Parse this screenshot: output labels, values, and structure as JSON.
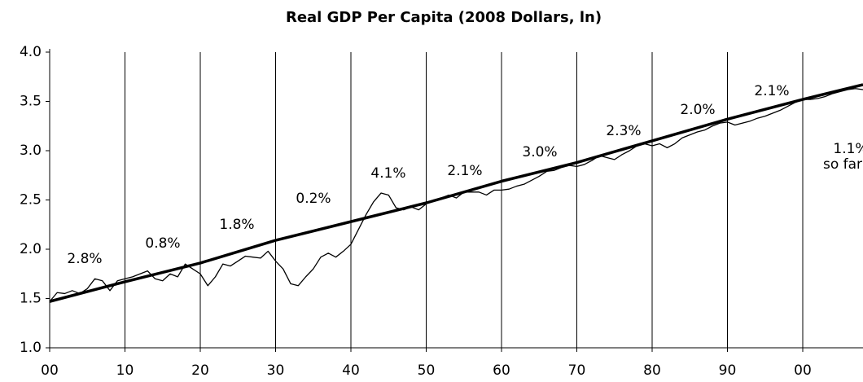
{
  "chart_data": {
    "type": "line",
    "title": "Real GDP Per Capita (2008 Dollars, ln)",
    "xlim": [
      1900,
      2008
    ],
    "xticks": [
      {
        "value": 1900,
        "label": "00"
      },
      {
        "value": 1910,
        "label": "10"
      },
      {
        "value": 1920,
        "label": "20"
      },
      {
        "value": 1930,
        "label": "30"
      },
      {
        "value": 1940,
        "label": "40"
      },
      {
        "value": 1950,
        "label": "50"
      },
      {
        "value": 1960,
        "label": "60"
      },
      {
        "value": 1970,
        "label": "70"
      },
      {
        "value": 1980,
        "label": "80"
      },
      {
        "value": 1990,
        "label": "90"
      },
      {
        "value": 2000,
        "label": "00"
      }
    ],
    "ylim": [
      1.0,
      4.0
    ],
    "yticks": [
      {
        "value": 1.0,
        "label": "1.0"
      },
      {
        "value": 1.5,
        "label": "1.5"
      },
      {
        "value": 2.0,
        "label": "2.0"
      },
      {
        "value": 2.5,
        "label": "2.5"
      },
      {
        "value": 3.0,
        "label": "3.0"
      },
      {
        "value": 3.5,
        "label": "3.5"
      },
      {
        "value": 4.0,
        "label": "4.0"
      }
    ],
    "grid": true,
    "x": [
      1900,
      1901,
      1902,
      1903,
      1904,
      1905,
      1906,
      1907,
      1908,
      1909,
      1910,
      1911,
      1912,
      1913,
      1914,
      1915,
      1916,
      1917,
      1918,
      1919,
      1920,
      1921,
      1922,
      1923,
      1924,
      1925,
      1926,
      1927,
      1928,
      1929,
      1930,
      1931,
      1932,
      1933,
      1934,
      1935,
      1936,
      1937,
      1938,
      1939,
      1940,
      1941,
      1942,
      1943,
      1944,
      1945,
      1946,
      1947,
      1948,
      1949,
      1950,
      1951,
      1952,
      1953,
      1954,
      1955,
      1956,
      1957,
      1958,
      1959,
      1960,
      1961,
      1962,
      1963,
      1964,
      1965,
      1966,
      1967,
      1968,
      1969,
      1970,
      1971,
      1972,
      1973,
      1974,
      1975,
      1976,
      1977,
      1978,
      1979,
      1980,
      1981,
      1982,
      1983,
      1984,
      1985,
      1986,
      1987,
      1988,
      1989,
      1990,
      1991,
      1992,
      1993,
      1994,
      1995,
      1996,
      1997,
      1998,
      1999,
      2000,
      2001,
      2002,
      2003,
      2004,
      2005,
      2006,
      2007,
      2008
    ],
    "series": [
      {
        "color": "#000000",
        "values": [
          1.47,
          1.56,
          1.55,
          1.58,
          1.55,
          1.6,
          1.7,
          1.68,
          1.58,
          1.68,
          1.7,
          1.72,
          1.75,
          1.78,
          1.7,
          1.68,
          1.75,
          1.72,
          1.85,
          1.8,
          1.75,
          1.63,
          1.72,
          1.85,
          1.83,
          1.88,
          1.93,
          1.92,
          1.91,
          1.98,
          1.88,
          1.8,
          1.65,
          1.63,
          1.72,
          1.8,
          1.92,
          1.96,
          1.92,
          1.98,
          2.05,
          2.2,
          2.35,
          2.48,
          2.57,
          2.55,
          2.42,
          2.4,
          2.43,
          2.4,
          2.46,
          2.5,
          2.52,
          2.55,
          2.52,
          2.58,
          2.58,
          2.58,
          2.55,
          2.6,
          2.6,
          2.61,
          2.64,
          2.66,
          2.7,
          2.74,
          2.79,
          2.8,
          2.83,
          2.85,
          2.84,
          2.86,
          2.9,
          2.95,
          2.93,
          2.91,
          2.96,
          3.0,
          3.05,
          3.07,
          3.05,
          3.07,
          3.03,
          3.07,
          3.13,
          3.16,
          3.19,
          3.21,
          3.25,
          3.28,
          3.29,
          3.26,
          3.28,
          3.3,
          3.33,
          3.35,
          3.38,
          3.41,
          3.45,
          3.49,
          3.52,
          3.52,
          3.53,
          3.55,
          3.58,
          3.6,
          3.62,
          3.63,
          3.62
        ]
      },
      {
        "color": "#000000",
        "x": [
          1900,
          1910,
          1920,
          1930,
          1940,
          1950,
          1960,
          1970,
          1980,
          1990,
          2000,
          2008
        ],
        "values": [
          1.47,
          1.67,
          1.86,
          2.09,
          2.28,
          2.47,
          2.69,
          2.88,
          3.1,
          3.32,
          3.52,
          3.67
        ]
      }
    ],
    "annotations": [
      "2.8%",
      "0.8%",
      "1.8%",
      "0.2%",
      "4.1%",
      "2.1%",
      "3.0%",
      "2.3%",
      "2.0%",
      "2.1%",
      "1.1%",
      "so far"
    ]
  }
}
